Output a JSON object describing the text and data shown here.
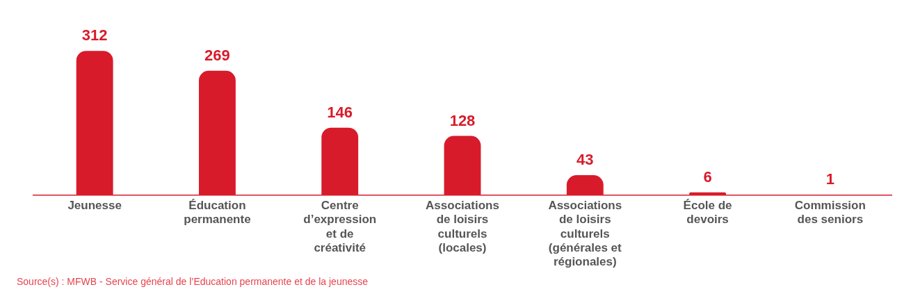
{
  "chart_data": {
    "type": "bar",
    "categories": [
      "Jeunesse",
      "Éducation permanente",
      "Centre d’expression et de créativité",
      "Associations de loisirs culturels (locales)",
      "Associations de loisirs culturels (générales et régionales)",
      "École de devoirs",
      "Commission des seniors"
    ],
    "values": [
      312,
      269,
      146,
      128,
      43,
      6,
      1
    ],
    "color": "#d81b2a",
    "data_labels": true,
    "grid": false,
    "tick_labels": "x",
    "annotations": [
      "Source(s) : MFWB - Service général de l’Education permanente et de la jeunesse"
    ]
  }
}
